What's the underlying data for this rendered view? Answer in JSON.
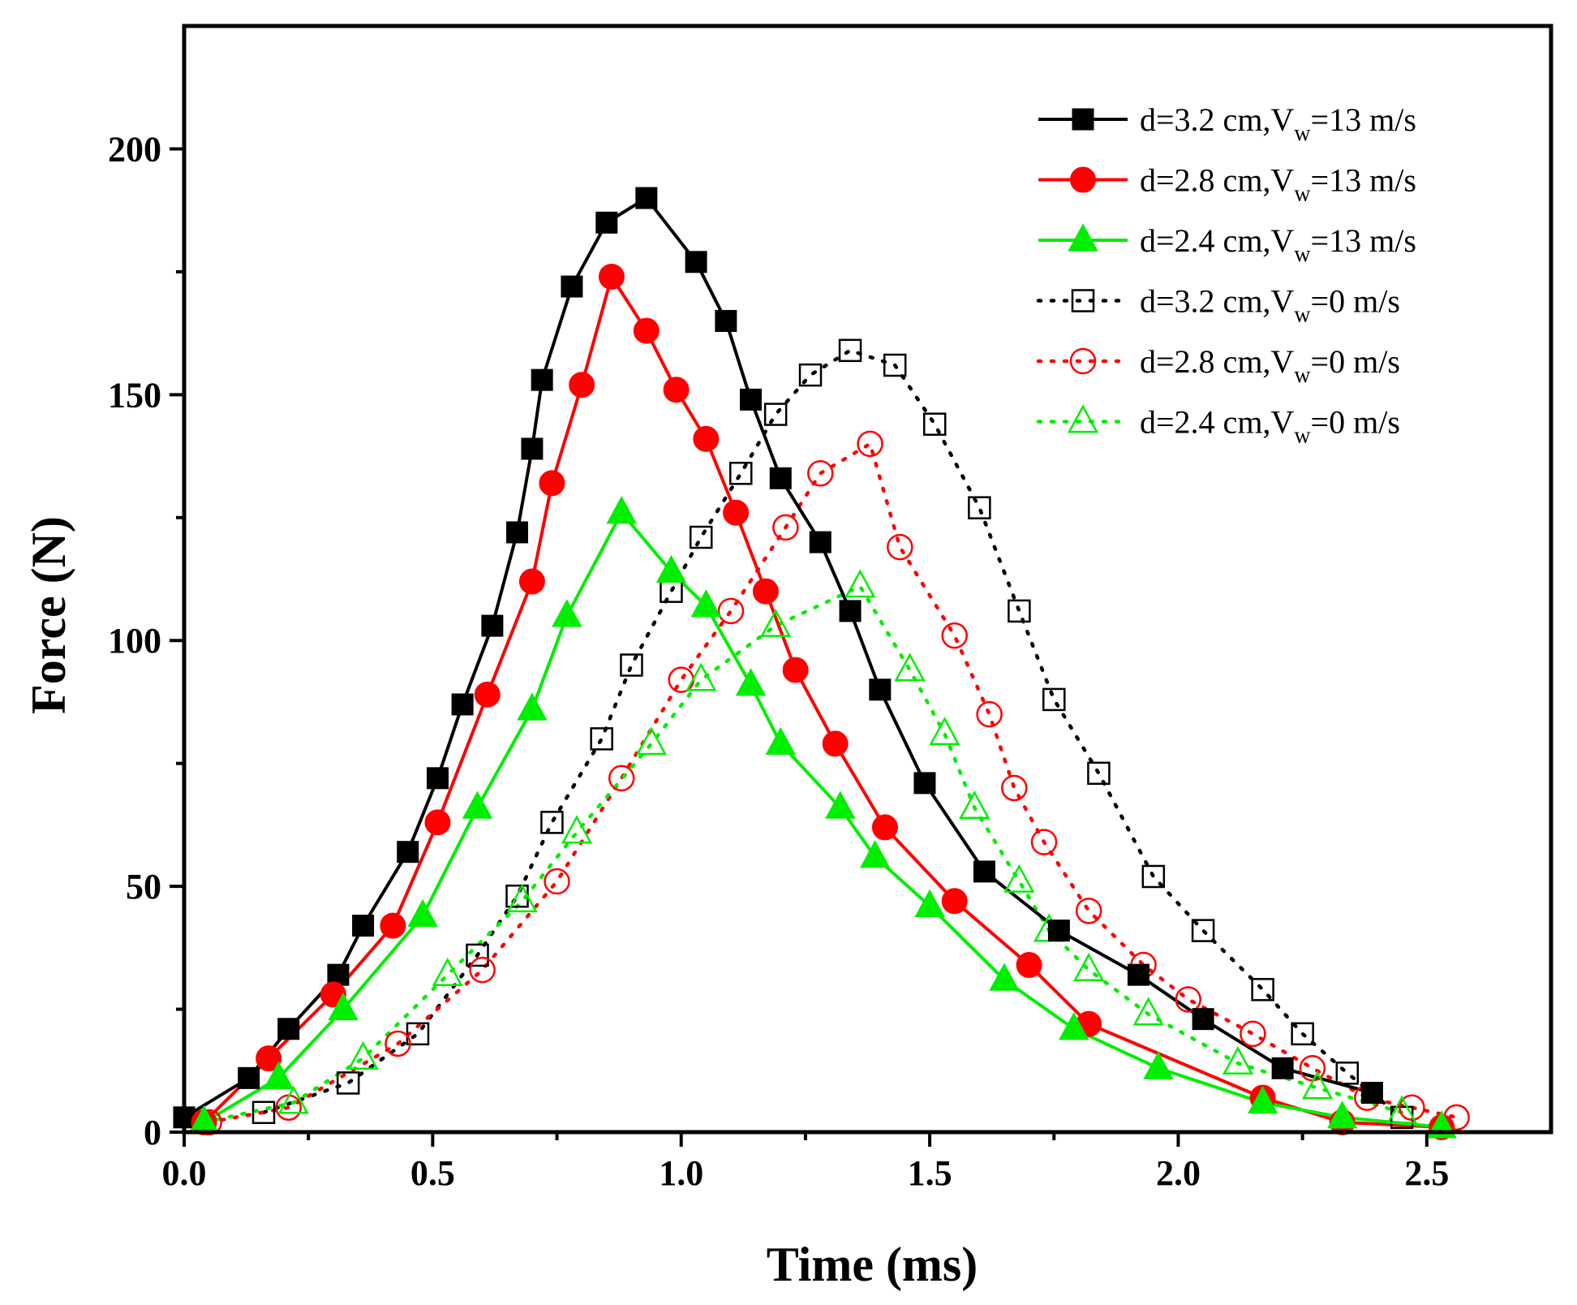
{
  "chart_data": {
    "type": "line",
    "xlabel": "Time (ms)",
    "ylabel": "Force (N)",
    "xlim": [
      0,
      2.75
    ],
    "ylim": [
      0,
      225
    ],
    "xticks": [
      0.0,
      0.5,
      1.0,
      1.5,
      2.0,
      2.5
    ],
    "xtick_labels": [
      "0.0",
      "0.5",
      "1.0",
      "1.5",
      "2.0",
      "2.5"
    ],
    "yticks": [
      0,
      50,
      100,
      150,
      200
    ],
    "ytick_labels": [
      "0",
      "50",
      "100",
      "150",
      "200"
    ],
    "grid": false,
    "legend_position": "top-right",
    "series": [
      {
        "name": "d=3.2 cm,V_w=13 m/s",
        "label": "d=3.2 cm,V",
        "sub": "w",
        "suffix": "=13 m/s",
        "color": "#000000",
        "marker": "square",
        "filled": true,
        "line": "solid",
        "x": [
          0.0,
          0.13,
          0.21,
          0.31,
          0.36,
          0.45,
          0.51,
          0.56,
          0.62,
          0.67,
          0.7,
          0.72,
          0.78,
          0.85,
          0.93,
          1.03,
          1.09,
          1.14,
          1.2,
          1.28,
          1.34,
          1.4,
          1.49,
          1.61,
          1.76,
          1.92,
          2.05,
          2.21,
          2.39
        ],
        "y": [
          3,
          11,
          21,
          32,
          42,
          57,
          72,
          87,
          103,
          122,
          139,
          153,
          172,
          185,
          190,
          177,
          165,
          149,
          133,
          120,
          106,
          90,
          71,
          53,
          41,
          32,
          23,
          13,
          8
        ]
      },
      {
        "name": "d=2.8 cm,V_w=13 m/s",
        "label": "d=2.8 cm,V",
        "sub": "w",
        "suffix": "=13 m/s",
        "color": "#ff0000",
        "marker": "circle",
        "filled": true,
        "line": "solid",
        "x": [
          0.04,
          0.17,
          0.3,
          0.42,
          0.51,
          0.61,
          0.7,
          0.74,
          0.8,
          0.86,
          0.93,
          0.99,
          1.05,
          1.11,
          1.17,
          1.23,
          1.31,
          1.41,
          1.55,
          1.7,
          1.82,
          2.17,
          2.33,
          2.53
        ],
        "y": [
          2,
          15,
          28,
          42,
          63,
          89,
          112,
          132,
          152,
          174,
          163,
          151,
          141,
          126,
          110,
          94,
          79,
          62,
          47,
          34,
          22,
          7,
          2,
          1
        ]
      },
      {
        "name": "d=2.4 cm,V_w=13 m/s",
        "label": "d=2.4 cm,V",
        "sub": "w",
        "suffix": "=13 m/s",
        "color": "#00ee00",
        "marker": "triangle",
        "filled": true,
        "line": "solid",
        "x": [
          0.04,
          0.19,
          0.32,
          0.48,
          0.59,
          0.7,
          0.77,
          0.88,
          0.98,
          1.05,
          1.14,
          1.2,
          1.32,
          1.39,
          1.5,
          1.65,
          1.79,
          1.96,
          2.17,
          2.33,
          2.53
        ],
        "y": [
          2,
          11,
          25,
          44,
          66,
          86,
          105,
          126,
          114,
          107,
          91,
          79,
          66,
          56,
          46,
          31,
          21,
          13,
          6,
          3,
          1
        ]
      },
      {
        "name": "d=3.2 cm,V_w=0 m/s",
        "label": "d=3.2 cm,V",
        "sub": "w",
        "suffix": "=0 m/s",
        "color": "#000000",
        "marker": "square",
        "filled": false,
        "line": "dotted",
        "x": [
          0.16,
          0.33,
          0.47,
          0.59,
          0.67,
          0.74,
          0.84,
          0.9,
          0.98,
          1.04,
          1.12,
          1.19,
          1.26,
          1.34,
          1.43,
          1.51,
          1.6,
          1.68,
          1.75,
          1.84,
          1.95,
          2.05,
          2.17,
          2.25,
          2.34,
          2.45
        ],
        "y": [
          4,
          10,
          20,
          36,
          48,
          63,
          80,
          95,
          110,
          121,
          134,
          146,
          154,
          159,
          156,
          144,
          127,
          106,
          88,
          73,
          52,
          41,
          29,
          20,
          12,
          3
        ]
      },
      {
        "name": "d=2.8 cm,V_w=0 m/s",
        "label": "d=2.8 cm,V",
        "sub": "w",
        "suffix": "=0 m/s",
        "color": "#ff0000",
        "marker": "circle",
        "filled": false,
        "line": "dotted",
        "x": [
          0.05,
          0.21,
          0.43,
          0.6,
          0.75,
          0.88,
          1.0,
          1.1,
          1.21,
          1.28,
          1.38,
          1.44,
          1.55,
          1.62,
          1.67,
          1.73,
          1.82,
          1.93,
          2.02,
          2.15,
          2.27,
          2.38,
          2.47,
          2.56
        ],
        "y": [
          2,
          5,
          18,
          33,
          51,
          72,
          92,
          106,
          123,
          134,
          140,
          119,
          101,
          85,
          70,
          59,
          45,
          34,
          27,
          20,
          13,
          7,
          5,
          3
        ]
      },
      {
        "name": "d=2.4 cm,V_w=0 m/s",
        "label": "d=2.4 cm,V",
        "sub": "w",
        "suffix": "=0 m/s",
        "color": "#00ee00",
        "marker": "triangle",
        "filled": false,
        "line": "dotted",
        "x": [
          0.04,
          0.22,
          0.36,
          0.53,
          0.68,
          0.79,
          0.94,
          1.04,
          1.19,
          1.36,
          1.46,
          1.53,
          1.59,
          1.68,
          1.74,
          1.82,
          1.94,
          2.12,
          2.28,
          2.45
        ],
        "y": [
          2,
          6,
          15,
          32,
          47,
          61,
          79,
          92,
          103,
          111,
          94,
          81,
          66,
          51,
          41,
          33,
          24,
          14,
          9,
          4
        ]
      }
    ]
  }
}
